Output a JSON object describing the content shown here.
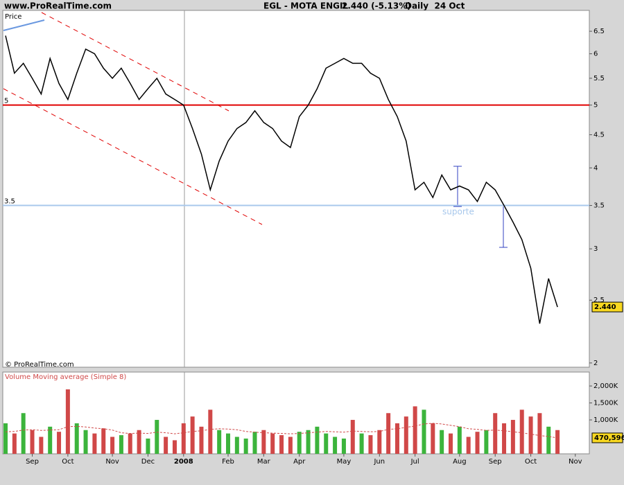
{
  "site": "www.ProRealTime.com",
  "copyright": "© ProRealTime.com",
  "chart_data": {
    "type": "line",
    "title": "EGL - MOTA ENGIL",
    "subtitle": "2.440 (-5.13%)",
    "period": "Daily  24 Oct",
    "y_label": "Price",
    "y2_label": "Volume Moving average (Simple 8)",
    "annotation": "suporte",
    "log_y": true,
    "grid": false,
    "categories": [
      null,
      null,
      null,
      "Sep",
      null,
      null,
      null,
      "Oct",
      null,
      null,
      null,
      null,
      "Nov",
      null,
      null,
      null,
      "Dec",
      null,
      null,
      null,
      "2008",
      null,
      null,
      null,
      null,
      "Feb",
      null,
      null,
      null,
      "Mar",
      null,
      null,
      null,
      "Apr",
      null,
      null,
      null,
      null,
      "May",
      null,
      null,
      null,
      "Jun",
      null,
      null,
      null,
      "Jul",
      null,
      null,
      null,
      null,
      "Aug",
      null,
      null,
      null,
      "Sep",
      null,
      null,
      null,
      "Oct",
      null,
      null,
      null,
      null,
      "Nov"
    ],
    "ylim": [
      1.97,
      7
    ],
    "yticks": [
      2,
      2.5,
      3,
      3.5,
      4,
      4.5,
      5,
      5.5,
      6,
      6.5
    ],
    "y2lim": [
      0,
      2410
    ],
    "y2ticks": [
      {
        "value": 1000,
        "label": "1,000K"
      },
      {
        "value": 1500,
        "label": "1,500K"
      },
      {
        "value": 2000,
        "label": "2,000K"
      }
    ],
    "reference_lines": [
      {
        "value": 5,
        "label": "5",
        "color": "#e00000"
      },
      {
        "value": 3.5,
        "label": "3.5",
        "color": "#a8c8ec"
      }
    ],
    "series": [
      {
        "name": "EGL",
        "type": "line",
        "color": "#000000",
        "values": [
          6.4,
          5.6,
          5.8,
          5.5,
          5.2,
          5.9,
          5.4,
          5.1,
          5.6,
          6.1,
          6.0,
          5.7,
          5.5,
          5.7,
          5.4,
          5.1,
          5.3,
          5.5,
          5.2,
          5.1,
          5.0,
          4.6,
          4.2,
          3.7,
          4.1,
          4.4,
          4.6,
          4.7,
          4.9,
          4.7,
          4.6,
          4.4,
          4.3,
          4.8,
          5.0,
          5.3,
          5.7,
          5.8,
          5.9,
          5.8,
          5.8,
          5.6,
          5.5,
          5.1,
          4.8,
          4.4,
          3.7,
          3.8,
          3.6,
          3.9,
          3.7,
          3.75,
          3.7,
          3.55,
          3.8,
          3.7,
          3.5,
          3.3,
          3.1,
          2.8,
          2.3,
          2.7,
          2.44,
          null,
          null
        ],
        "value_labels": [
          null,
          null,
          null,
          null,
          null,
          null,
          null,
          null,
          null,
          null,
          null,
          null,
          null,
          null,
          null,
          null,
          null,
          null,
          null,
          null,
          null,
          null,
          null,
          null,
          null,
          null,
          null,
          null,
          null,
          null,
          null,
          null,
          null,
          null,
          null,
          null,
          null,
          null,
          null,
          null,
          null,
          null,
          null,
          null,
          null,
          null,
          null,
          null,
          null,
          null,
          null,
          null,
          null,
          null,
          null,
          null,
          null,
          null,
          null,
          null,
          null,
          null,
          "2.440",
          null,
          null
        ]
      },
      {
        "name": "Volume",
        "type": "bar",
        "axis": "y2",
        "up_color": "#3cb43c",
        "down_color": "#d04848",
        "values": [
          900,
          600,
          1200,
          700,
          500,
          800,
          650,
          1900,
          900,
          700,
          600,
          750,
          500,
          550,
          600,
          700,
          450,
          1000,
          500,
          400,
          900,
          1100,
          800,
          1300,
          700,
          600,
          500,
          450,
          650,
          700,
          600,
          550,
          500,
          650,
          700,
          800,
          600,
          500,
          450,
          1000,
          600,
          550,
          700,
          1200,
          900,
          1100,
          1400,
          1300,
          900,
          700,
          600,
          800,
          500,
          650,
          700,
          1200,
          900,
          1000,
          1300,
          1100,
          1200,
          800,
          700,
          null,
          null
        ]
      },
      {
        "name": "Moving average",
        "type": "line",
        "axis": "y2",
        "color": "#d04848",
        "dashed": true,
        "values": [
          650,
          660,
          700,
          710,
          690,
          700,
          710,
          800,
          810,
          790,
          760,
          740,
          700,
          620,
          600,
          610,
          600,
          640,
          620,
          590,
          620,
          660,
          680,
          720,
          740,
          730,
          710,
          660,
          640,
          620,
          610,
          600,
          590,
          600,
          620,
          640,
          660,
          650,
          640,
          670,
          660,
          650,
          660,
          720,
          740,
          780,
          820,
          880,
          900,
          880,
          840,
          800,
          740,
          720,
          690,
          700,
          680,
          650,
          620,
          580,
          540,
          510,
          470.596,
          null,
          null
        ],
        "value_labels": [
          null,
          null,
          null,
          null,
          null,
          null,
          null,
          null,
          null,
          null,
          null,
          null,
          null,
          null,
          null,
          null,
          null,
          null,
          null,
          null,
          null,
          null,
          null,
          null,
          null,
          null,
          null,
          null,
          null,
          null,
          null,
          null,
          null,
          null,
          null,
          null,
          null,
          null,
          null,
          null,
          null,
          null,
          null,
          null,
          null,
          null,
          null,
          null,
          null,
          null,
          null,
          null,
          null,
          null,
          null,
          null,
          null,
          null,
          null,
          null,
          null,
          null,
          "470,596",
          null,
          null
        ]
      }
    ]
  }
}
